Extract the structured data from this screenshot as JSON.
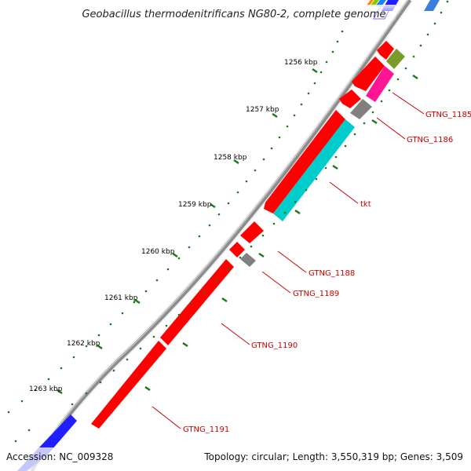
{
  "title": "Geobacillus thermodenitrificans NG80-2, complete genome",
  "footer": {
    "accession": "Accession: NC_009328",
    "info": "Topology: circular; Length: 3,550,319 bp; Genes: 3,509"
  },
  "kbp_labels": [
    "1256 kbp",
    "1257 kbp",
    "1258 kbp",
    "1259 kbp",
    "1260 kbp",
    "1261 kbp",
    "1262 kbp",
    "1263 kbp"
  ],
  "gene_labels": [
    "GTNG_1185",
    "GTNG_1186",
    "tkt",
    "GTNG_1188",
    "GTNG_1189",
    "GTNG_1190",
    "GTNG_1191"
  ],
  "colors": {
    "gene_red": "#ff0000",
    "gene_cyan": "#00cccc",
    "gene_magenta": "#ff1493",
    "gene_gray": "#808080",
    "gene_olive": "#7a9a2a",
    "gene_blue": "#1f1fff",
    "backbone": "#8a8a8a",
    "tick_green": "#1a7a1a",
    "label_red": "#cc0000"
  }
}
